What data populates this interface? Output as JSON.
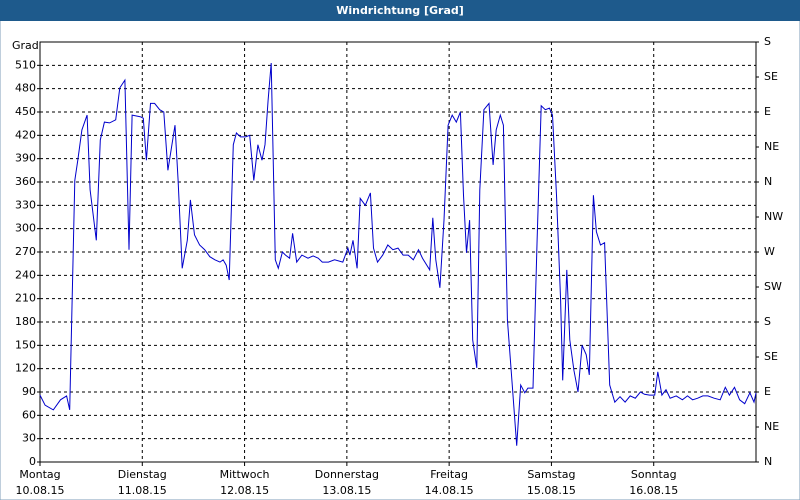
{
  "chart_data": {
    "type": "line",
    "title": "Windrichtung [Grad]",
    "y_label": "Grad",
    "color": "#0000cc",
    "grid": true,
    "xlim": [
      0,
      7
    ],
    "xticks": [
      {
        "value": 0,
        "label": "Montag",
        "date": "10.08.15"
      },
      {
        "value": 1,
        "label": "Dienstag",
        "date": "11.08.15"
      },
      {
        "value": 2,
        "label": "Mittwoch",
        "date": "12.08.15"
      },
      {
        "value": 3,
        "label": "Donnerstag",
        "date": "13.08.15"
      },
      {
        "value": 4,
        "label": "Freitag",
        "date": "14.08.15"
      },
      {
        "value": 5,
        "label": "Samstag",
        "date": "15.08.15"
      },
      {
        "value": 6,
        "label": "Sonntag",
        "date": "16.08.15"
      }
    ],
    "ylim": [
      0,
      540
    ],
    "yticks": [
      0,
      30,
      60,
      90,
      120,
      150,
      180,
      210,
      240,
      270,
      300,
      330,
      360,
      390,
      420,
      450,
      480,
      510
    ],
    "y2lim": [
      0,
      540
    ],
    "y2ticks": [
      {
        "value": 0,
        "label": "N"
      },
      {
        "value": 45,
        "label": "NE"
      },
      {
        "value": 90,
        "label": "E"
      },
      {
        "value": 135,
        "label": "SE"
      },
      {
        "value": 180,
        "label": "S"
      },
      {
        "value": 225,
        "label": "SW"
      },
      {
        "value": 270,
        "label": "W"
      },
      {
        "value": 315,
        "label": "NW"
      },
      {
        "value": 360,
        "label": "N"
      },
      {
        "value": 405,
        "label": "NE"
      },
      {
        "value": 450,
        "label": "E"
      },
      {
        "value": 495,
        "label": "SE"
      },
      {
        "value": 540,
        "label": "S"
      }
    ],
    "x": [
      0,
      0.05,
      0.13,
      0.2,
      0.26,
      0.29,
      0.34,
      0.37,
      0.41,
      0.46,
      0.49,
      0.55,
      0.59,
      0.63,
      0.68,
      0.74,
      0.78,
      0.83,
      0.87,
      0.9,
      0.98,
      1.01,
      1.04,
      1.08,
      1.12,
      1.17,
      1.21,
      1.25,
      1.32,
      1.35,
      1.39,
      1.44,
      1.47,
      1.51,
      1.56,
      1.61,
      1.66,
      1.71,
      1.76,
      1.79,
      1.82,
      1.85,
      1.89,
      1.92,
      1.96,
      2.01,
      2.05,
      2.09,
      2.13,
      2.17,
      2.2,
      2.23,
      2.26,
      2.3,
      2.33,
      2.37,
      2.4,
      2.44,
      2.47,
      2.51,
      2.56,
      2.62,
      2.67,
      2.72,
      2.76,
      2.82,
      2.88,
      2.96,
      3.01,
      3.03,
      3.06,
      3.1,
      3.13,
      3.18,
      3.23,
      3.26,
      3.3,
      3.35,
      3.4,
      3.45,
      3.5,
      3.55,
      3.6,
      3.65,
      3.7,
      3.74,
      3.81,
      3.84,
      3.87,
      3.91,
      3.95,
      3.99,
      4.03,
      4.07,
      4.11,
      4.14,
      4.17,
      4.2,
      4.23,
      4.27,
      4.3,
      4.34,
      4.39,
      4.43,
      4.46,
      4.5,
      4.53,
      4.57,
      4.62,
      4.66,
      4.7,
      4.74,
      4.77,
      4.82,
      4.86,
      4.9,
      4.94,
      4.98,
      5.01,
      5.05,
      5.09,
      5.11,
      5.15,
      5.18,
      5.22,
      5.26,
      5.3,
      5.34,
      5.37,
      5.41,
      5.44,
      5.48,
      5.52,
      5.57,
      5.62,
      5.67,
      5.72,
      5.77,
      5.82,
      5.87,
      5.91,
      5.96,
      6.01,
      6.04,
      6.08,
      6.12,
      6.16,
      6.22,
      6.28,
      6.33,
      6.38,
      6.43,
      6.48,
      6.53,
      6.59,
      6.65,
      6.7,
      6.74,
      6.79,
      6.84,
      6.89,
      6.94,
      6.98,
      7
    ],
    "values": [
      86,
      73,
      67,
      80,
      85,
      67,
      362,
      388,
      427,
      446,
      350,
      285,
      414,
      437,
      436,
      440,
      481,
      491,
      273,
      446,
      444,
      442,
      388,
      461,
      461,
      453,
      450,
      375,
      433,
      362,
      249,
      285,
      337,
      292,
      279,
      273,
      264,
      260,
      257,
      260,
      253,
      234,
      408,
      423,
      418,
      418,
      420,
      362,
      408,
      388,
      408,
      465,
      513,
      260,
      249,
      270,
      266,
      262,
      294,
      257,
      266,
      262,
      265,
      262,
      257,
      257,
      260,
      257,
      275,
      266,
      285,
      249,
      339,
      330,
      346,
      275,
      257,
      266,
      279,
      273,
      275,
      266,
      266,
      260,
      273,
      262,
      247,
      314,
      260,
      224,
      311,
      433,
      446,
      437,
      450,
      343,
      269,
      311,
      157,
      121,
      350,
      453,
      461,
      382,
      427,
      446,
      433,
      183,
      93,
      21,
      99,
      89,
      95,
      95,
      285,
      458,
      453,
      455,
      446,
      343,
      208,
      105,
      247,
      157,
      118,
      90,
      150,
      138,
      112,
      343,
      296,
      279,
      282,
      99,
      77,
      84,
      77,
      85,
      82,
      90,
      87,
      86,
      86,
      116,
      86,
      93,
      82,
      85,
      80,
      85,
      80,
      82,
      85,
      85,
      82,
      80,
      96,
      86,
      96,
      80,
      75,
      89,
      77,
      89
    ]
  }
}
